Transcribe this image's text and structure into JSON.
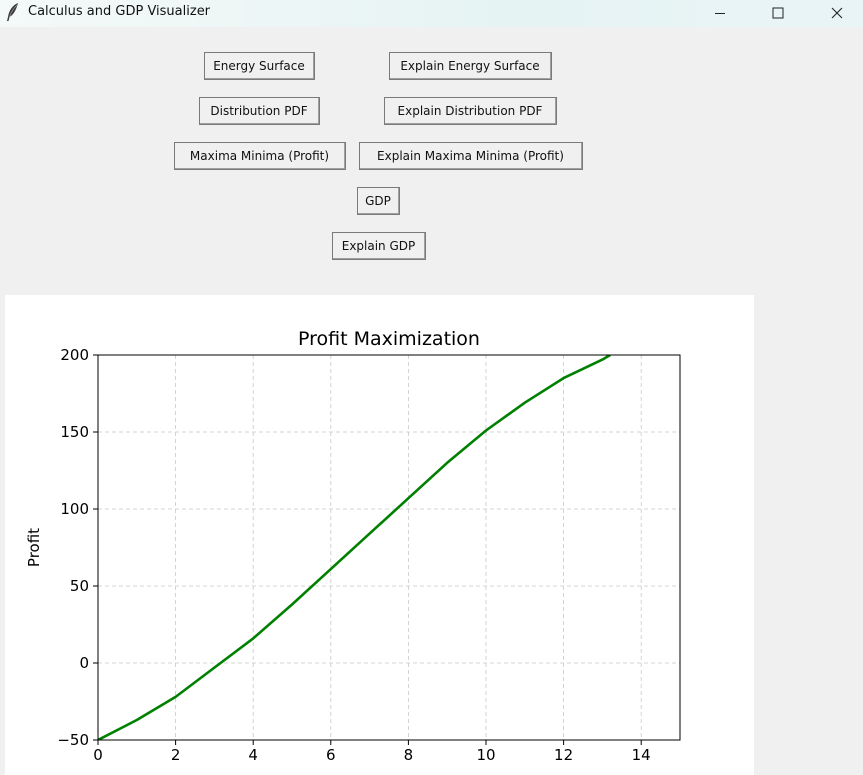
{
  "window": {
    "title": "Calculus and GDP Visualizer",
    "icon": "feather-icon",
    "controls": [
      "minimize-icon",
      "maximize-icon",
      "close-icon"
    ]
  },
  "buttons": {
    "energy_surface": "Energy Surface",
    "explain_energy_surface": "Explain Energy Surface",
    "distribution_pdf": "Distribution PDF",
    "explain_distribution_pdf": "Explain Distribution PDF",
    "maxima_minima": "Maxima Minima (Profit)",
    "explain_maxima_minima": "Explain Maxima Minima (Profit)",
    "gdp": "GDP",
    "explain_gdp": "Explain GDP"
  },
  "chart_data": {
    "type": "line",
    "title": "Profit Maximization",
    "xlabel": "",
    "ylabel": "Profit",
    "xlim": [
      0,
      15
    ],
    "ylim": [
      -50,
      200
    ],
    "xticks": [
      0,
      2,
      4,
      6,
      8,
      10,
      12,
      14
    ],
    "yticks": [
      -50,
      0,
      50,
      100,
      150,
      200
    ],
    "grid": true,
    "grid_style": "dashed",
    "series": [
      {
        "color": "#008000",
        "x": [
          0,
          1,
          2,
          3,
          4,
          5,
          6,
          7,
          8,
          9,
          10,
          11,
          12,
          13,
          13.2
        ],
        "y": [
          -50,
          -37,
          -22,
          -3,
          16,
          38,
          61,
          84,
          107,
          130,
          151,
          169,
          185,
          197,
          200
        ]
      }
    ]
  }
}
